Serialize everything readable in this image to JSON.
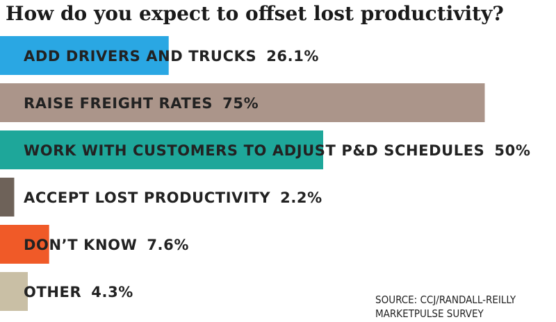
{
  "chart_data": {
    "type": "bar",
    "orientation": "horizontal",
    "title": "How do you expect to offset lost productivity?",
    "categories": [
      "ADD DRIVERS AND TRUCKS",
      "RAISE FREIGHT RATES",
      "WORK WITH CUSTOMERS TO ADJUST P&D SCHEDULES",
      "ACCEPT LOST PRODUCTIVITY",
      "DON’T KNOW",
      "OTHER"
    ],
    "values": [
      26.1,
      75,
      50,
      2.2,
      7.6,
      4.3
    ],
    "value_labels": [
      "26.1%",
      "75%",
      "50%",
      "2.2%",
      "7.6%",
      "4.3%"
    ],
    "colors": [
      "#2aa7e3",
      "#ab958a",
      "#1ea79a",
      "#6e6259",
      "#f05a28",
      "#c9bfa5"
    ],
    "xlim": [
      0,
      100
    ],
    "grid": false,
    "legend": "none"
  },
  "source": {
    "line1": "SOURCE: CCJ/RANDALL-REILLY",
    "line2": "MARKETPULSE SURVEY"
  }
}
